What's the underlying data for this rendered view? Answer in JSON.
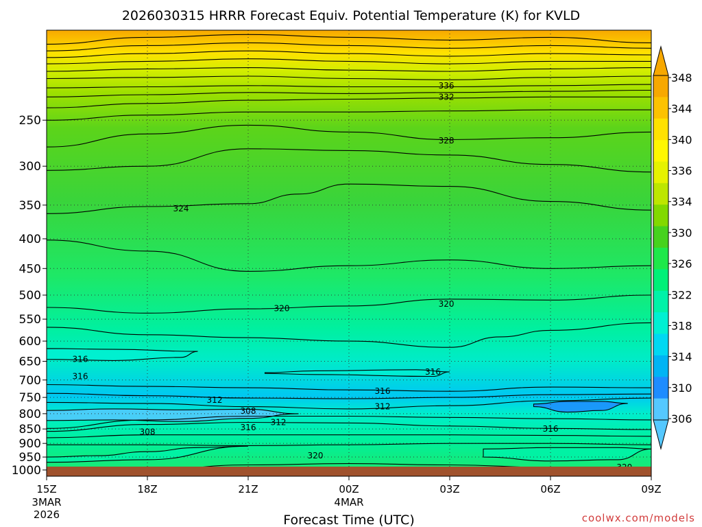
{
  "chart_data": {
    "type": "heatmap",
    "title": "2026030315 HRRR Forecast Equiv. Potential Temperature (K) for KVLD",
    "xlabel": "Forecast Time (UTC)",
    "credit": "coolwx.com/models",
    "x_ticks": [
      {
        "hour": 0,
        "label": "15Z",
        "sub1": "3MAR",
        "sub2": "2026"
      },
      {
        "hour": 3,
        "label": "18Z",
        "sub1": "",
        "sub2": ""
      },
      {
        "hour": 6,
        "label": "21Z",
        "sub1": "",
        "sub2": ""
      },
      {
        "hour": 9,
        "label": "00Z",
        "sub1": "4MAR",
        "sub2": ""
      },
      {
        "hour": 12,
        "label": "03Z",
        "sub1": "",
        "sub2": ""
      },
      {
        "hour": 15,
        "label": "06Z",
        "sub1": "",
        "sub2": ""
      },
      {
        "hour": 18,
        "label": "09Z",
        "sub1": "",
        "sub2": ""
      }
    ],
    "xlim": [
      0,
      18
    ],
    "y_ticks": [
      250,
      300,
      350,
      400,
      450,
      500,
      550,
      600,
      650,
      700,
      750,
      800,
      850,
      900,
      950,
      1000
    ],
    "ylim": [
      1025,
      175
    ],
    "y_scale": "log",
    "grid": "dotted horizontal",
    "levels": [
      306,
      308,
      310,
      312,
      314,
      316,
      318,
      320,
      322,
      324,
      326,
      328,
      330,
      332,
      334,
      336,
      338,
      340,
      342,
      344,
      346,
      348
    ],
    "colorbar_labels": [
      348,
      344,
      340,
      336,
      334,
      330,
      326,
      322,
      318,
      314,
      310,
      306
    ],
    "colorbar_colors": [
      "#f7a800",
      "#fcc200",
      "#ffe100",
      "#fff700",
      "#e6f200",
      "#bde600",
      "#82d900",
      "#46d21e",
      "#1ee84a",
      "#00f078",
      "#00f2a8",
      "#00f0d2",
      "#00d8f2",
      "#00b4f4",
      "#1e8cff",
      "#55c8ff"
    ],
    "ground_color": "#a0522d",
    "contour_labels": [
      {
        "text": "336",
        "hour": 11.9,
        "p": 218
      },
      {
        "text": "332",
        "hour": 11.9,
        "p": 228
      },
      {
        "text": "328",
        "hour": 11.9,
        "p": 271
      },
      {
        "text": "324",
        "hour": 4.0,
        "p": 355
      },
      {
        "text": "320",
        "hour": 7.0,
        "p": 527
      },
      {
        "text": "320",
        "hour": 11.9,
        "p": 518
      },
      {
        "text": "316",
        "hour": 1.0,
        "p": 645
      },
      {
        "text": "316",
        "hour": 1.0,
        "p": 690
      },
      {
        "text": "316",
        "hour": 11.5,
        "p": 678
      },
      {
        "text": "316",
        "hour": 10.0,
        "p": 732
      },
      {
        "text": "312",
        "hour": 5.0,
        "p": 758
      },
      {
        "text": "312",
        "hour": 10.0,
        "p": 778
      },
      {
        "text": "308",
        "hour": 6.0,
        "p": 792
      },
      {
        "text": "312",
        "hour": 6.9,
        "p": 828
      },
      {
        "text": "316",
        "hour": 6.0,
        "p": 845
      },
      {
        "text": "308",
        "hour": 3.0,
        "p": 860
      },
      {
        "text": "316",
        "hour": 15.0,
        "p": 850
      },
      {
        "text": "320",
        "hour": 8.0,
        "p": 945
      },
      {
        "text": "320",
        "hour": 17.2,
        "p": 990
      }
    ],
    "series": [
      {
        "value": 348,
        "hour": [
          0,
          3,
          6,
          9,
          12,
          15,
          18
        ],
        "p": [
          185,
          180,
          178,
          180,
          182,
          180,
          184
        ]
      },
      {
        "value": 346,
        "hour": [
          0,
          3,
          6,
          9,
          12,
          15,
          18
        ],
        "p": [
          190,
          186,
          184,
          186,
          188,
          186,
          188
        ]
      },
      {
        "value": 344,
        "hour": [
          0,
          3,
          6,
          9,
          12,
          15,
          18
        ],
        "p": [
          195,
          192,
          190,
          192,
          194,
          192,
          193
        ]
      },
      {
        "value": 342,
        "hour": [
          0,
          3,
          6,
          9,
          12,
          15,
          18
        ],
        "p": [
          200,
          198,
          196,
          198,
          200,
          198,
          198
        ]
      },
      {
        "value": 340,
        "hour": [
          0,
          3,
          6,
          9,
          12,
          15,
          18
        ],
        "p": [
          206,
          204,
          203,
          205,
          206,
          204,
          203
        ]
      },
      {
        "value": 338,
        "hour": [
          0,
          3,
          6,
          9,
          12,
          15,
          18
        ],
        "p": [
          212,
          211,
          210,
          212,
          213,
          211,
          210
        ]
      },
      {
        "value": 336,
        "hour": [
          0,
          3,
          6,
          9,
          12,
          15,
          18
        ],
        "p": [
          220,
          219,
          218,
          219,
          219,
          218,
          217
        ]
      },
      {
        "value": 334,
        "hour": [
          0,
          3,
          6,
          9,
          12,
          15,
          18
        ],
        "p": [
          228,
          226,
          224,
          225,
          224,
          223,
          222
        ]
      },
      {
        "value": 332,
        "hour": [
          0,
          3,
          6,
          9,
          12,
          15,
          18
        ],
        "p": [
          238,
          234,
          231,
          230,
          229,
          228,
          228
        ]
      },
      {
        "value": 330,
        "hour": [
          0,
          3,
          6,
          9,
          12,
          15,
          18
        ],
        "p": [
          250,
          245,
          242,
          242,
          241,
          240,
          240
        ]
      },
      {
        "value": 328,
        "hour": [
          0,
          3,
          6,
          9,
          12,
          15,
          18
        ],
        "p": [
          278,
          264,
          255,
          262,
          270,
          268,
          262
        ]
      },
      {
        "value": 326,
        "hour": [
          0,
          3,
          6,
          9,
          12,
          15,
          18
        ],
        "p": [
          305,
          300,
          280,
          282,
          287,
          298,
          307
        ]
      },
      {
        "value": 324,
        "hour": [
          0,
          3,
          6,
          7.5,
          9,
          12,
          15,
          18
        ],
        "p": [
          362,
          352,
          348,
          335,
          322,
          325,
          345,
          357
        ]
      },
      {
        "value": 322,
        "hour": [
          0,
          3,
          6,
          9,
          12,
          15,
          18
        ],
        "p": [
          402,
          420,
          455,
          445,
          435,
          450,
          445
        ]
      },
      {
        "value": 320,
        "hour": [
          0,
          3,
          6,
          9,
          12,
          15,
          18
        ],
        "p": [
          525,
          537,
          528,
          522,
          508,
          510,
          500
        ]
      },
      {
        "value": 318,
        "hour": [
          0,
          3,
          6,
          9,
          12,
          13.5,
          15,
          18
        ],
        "p": [
          568,
          585,
          592,
          600,
          615,
          590,
          575,
          558
        ]
      },
      {
        "value": 316,
        "hour": [
          0,
          3,
          6,
          9,
          12,
          15,
          18
        ],
        "p": [
          713,
          718,
          722,
          728,
          732,
          720,
          722
        ]
      },
      {
        "value": 314,
        "hour": [
          0,
          3,
          6,
          9,
          12,
          15,
          18
        ],
        "p": [
          738,
          745,
          752,
          754,
          750,
          742,
          740
        ]
      },
      {
        "value": 312,
        "hour": [
          0,
          3,
          6,
          9,
          12,
          15,
          18
        ],
        "p": [
          765,
          768,
          778,
          785,
          775,
          760,
          752
        ]
      },
      {
        "value": 314,
        "hour": [
          0,
          3,
          6,
          9,
          12,
          15,
          18
        ],
        "p": [
          848,
          820,
          808,
          808,
          812,
          816,
          820
        ]
      },
      {
        "value": 316,
        "hour": [
          0,
          3,
          6,
          9,
          12,
          15,
          18
        ],
        "p": [
          858,
          835,
          828,
          830,
          840,
          848,
          852
        ]
      },
      {
        "value": 318,
        "hour": [
          0,
          3,
          6,
          9,
          12,
          15,
          18
        ],
        "p": [
          880,
          870,
          870,
          870,
          870,
          872,
          875
        ]
      },
      {
        "value": 320,
        "hour": [
          0,
          3,
          6,
          9,
          12,
          15,
          18
        ],
        "p": [
          905,
          905,
          908,
          905,
          900,
          900,
          905
        ]
      },
      {
        "value": 318,
        "hour": [
          0,
          3,
          6,
          9,
          12,
          15,
          18
        ],
        "p": [
          1000,
          1000,
          980,
          975,
          980,
          990,
          995
        ]
      }
    ],
    "closed_contours": [
      {
        "value": 316,
        "hour": [
          0,
          2,
          4.5,
          4,
          2,
          0
        ],
        "p": [
          618,
          620,
          625,
          640,
          648,
          645
        ]
      },
      {
        "value": 316,
        "hour": [
          6.5,
          8,
          11,
          12,
          11.5,
          8,
          6.5
        ],
        "p": [
          680,
          675,
          672,
          678,
          690,
          685,
          682
        ]
      },
      {
        "value": 306,
        "hour": [
          0,
          2,
          4,
          6,
          7.5,
          6,
          4,
          2,
          0
        ],
        "p": [
          790,
          785,
          788,
          786,
          800,
          815,
          825,
          820,
          822
        ]
      },
      {
        "value": 310,
        "hour": [
          14.5,
          15.5,
          16.5,
          17.3,
          16.5,
          15.5,
          14.5
        ],
        "p": [
          770,
          762,
          762,
          768,
          790,
          795,
          778
        ]
      },
      {
        "value": 320,
        "hour": [
          0,
          1.5,
          3,
          4.5,
          6,
          3,
          0
        ],
        "p": [
          950,
          945,
          930,
          915,
          910,
          960,
          970
        ]
      },
      {
        "value": 320,
        "hour": [
          13,
          15,
          17,
          18,
          17,
          15,
          13
        ],
        "p": [
          920,
          915,
          915,
          920,
          960,
          965,
          950
        ]
      }
    ]
  }
}
